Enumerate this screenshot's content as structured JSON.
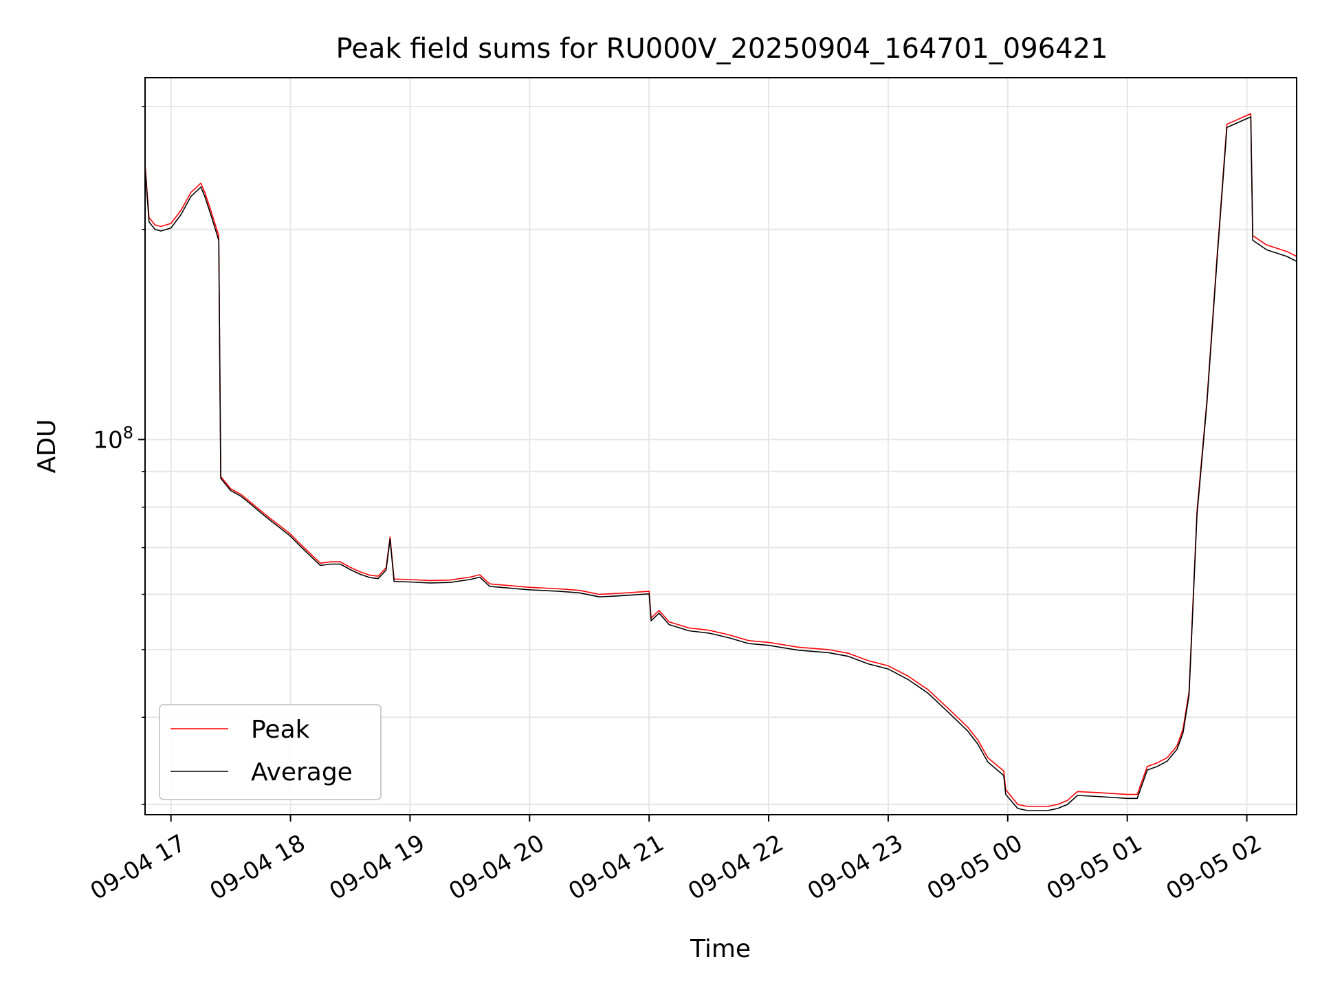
{
  "chart_data": {
    "type": "line",
    "title": "Peak field sums for RU000V_20250904_164701_096421",
    "xlabel": "Time",
    "ylabel": "ADU",
    "y_scale": "log",
    "x_range": [
      "2025-09-04 16:47",
      "2025-09-05 02:25"
    ],
    "ylim": [
      29000000,
      330000000
    ],
    "x_ticks": [
      {
        "t": "2025-09-04 17:00",
        "label": "09-04 17"
      },
      {
        "t": "2025-09-04 18:00",
        "label": "09-04 18"
      },
      {
        "t": "2025-09-04 19:00",
        "label": "09-04 19"
      },
      {
        "t": "2025-09-04 20:00",
        "label": "09-04 20"
      },
      {
        "t": "2025-09-04 21:00",
        "label": "09-04 21"
      },
      {
        "t": "2025-09-04 22:00",
        "label": "09-04 22"
      },
      {
        "t": "2025-09-04 23:00",
        "label": "09-04 23"
      },
      {
        "t": "2025-09-05 00:00",
        "label": "09-05 00"
      },
      {
        "t": "2025-09-05 01:00",
        "label": "09-05 01"
      },
      {
        "t": "2025-09-05 02:00",
        "label": "09-05 02"
      }
    ],
    "y_major_ticks": [
      {
        "value": 100000000,
        "label_base": "10",
        "label_exp": "8"
      }
    ],
    "y_minor_ticks": [
      30000000,
      40000000,
      50000000,
      60000000,
      70000000,
      80000000,
      90000000,
      200000000,
      300000000
    ],
    "grid": true,
    "legend_position": "lower-left",
    "legend": [
      {
        "name": "Peak",
        "color": "#ff0000"
      },
      {
        "name": "Average",
        "color": "#000000"
      }
    ],
    "series": [
      {
        "name": "Average",
        "color": "#000000",
        "points": [
          [
            "2025-09-04 16:47",
            245000000
          ],
          [
            "2025-09-04 16:49",
            205000000
          ],
          [
            "2025-09-04 16:52",
            200000000
          ],
          [
            "2025-09-04 16:55",
            199000000
          ],
          [
            "2025-09-04 17:00",
            201000000
          ],
          [
            "2025-09-04 17:05",
            210000000
          ],
          [
            "2025-09-04 17:10",
            223000000
          ],
          [
            "2025-09-04 17:15",
            230000000
          ],
          [
            "2025-09-04 17:17",
            223000000
          ],
          [
            "2025-09-04 17:20",
            210000000
          ],
          [
            "2025-09-04 17:24",
            193000000
          ],
          [
            "2025-09-04 17:25",
            88000000
          ],
          [
            "2025-09-04 17:30",
            84500000
          ],
          [
            "2025-09-04 17:35",
            83000000
          ],
          [
            "2025-09-04 17:40",
            80800000
          ],
          [
            "2025-09-04 17:45",
            78600000
          ],
          [
            "2025-09-04 17:50",
            76500000
          ],
          [
            "2025-09-04 17:55",
            74600000
          ],
          [
            "2025-09-04 18:00",
            72700000
          ],
          [
            "2025-09-04 18:05",
            70300000
          ],
          [
            "2025-09-04 18:10",
            68100000
          ],
          [
            "2025-09-04 18:15",
            66000000
          ],
          [
            "2025-09-04 18:20",
            66300000
          ],
          [
            "2025-09-04 18:25",
            66300000
          ],
          [
            "2025-09-04 18:30",
            65100000
          ],
          [
            "2025-09-04 18:35",
            64100000
          ],
          [
            "2025-09-04 18:40",
            63400000
          ],
          [
            "2025-09-04 18:44",
            63200000
          ],
          [
            "2025-09-04 18:48",
            65000000
          ],
          [
            "2025-09-04 18:50",
            72000000
          ],
          [
            "2025-09-04 18:52",
            62600000
          ],
          [
            "2025-09-04 19:00",
            62500000
          ],
          [
            "2025-09-04 19:10",
            62300000
          ],
          [
            "2025-09-04 19:20",
            62400000
          ],
          [
            "2025-09-04 19:30",
            63000000
          ],
          [
            "2025-09-04 19:35",
            63500000
          ],
          [
            "2025-09-04 19:40",
            61600000
          ],
          [
            "2025-09-04 20:00",
            60900000
          ],
          [
            "2025-09-04 20:15",
            60600000
          ],
          [
            "2025-09-04 20:25",
            60300000
          ],
          [
            "2025-09-04 20:35",
            59500000
          ],
          [
            "2025-09-04 20:45",
            59700000
          ],
          [
            "2025-09-04 21:00",
            60100000
          ],
          [
            "2025-09-04 21:01",
            55000000
          ],
          [
            "2025-09-04 21:05",
            56400000
          ],
          [
            "2025-09-04 21:10",
            54300000
          ],
          [
            "2025-09-04 21:20",
            53200000
          ],
          [
            "2025-09-04 21:30",
            52800000
          ],
          [
            "2025-09-04 21:40",
            52000000
          ],
          [
            "2025-09-04 21:50",
            51000000
          ],
          [
            "2025-09-04 22:00",
            50700000
          ],
          [
            "2025-09-04 22:15",
            49900000
          ],
          [
            "2025-09-04 22:30",
            49500000
          ],
          [
            "2025-09-04 22:40",
            48900000
          ],
          [
            "2025-09-04 22:50",
            47700000
          ],
          [
            "2025-09-04 23:00",
            46900000
          ],
          [
            "2025-09-04 23:10",
            45300000
          ],
          [
            "2025-09-04 23:20",
            43300000
          ],
          [
            "2025-09-04 23:30",
            40700000
          ],
          [
            "2025-09-04 23:40",
            38200000
          ],
          [
            "2025-09-04 23:45",
            36600000
          ],
          [
            "2025-09-04 23:50",
            34500000
          ],
          [
            "2025-09-04 23:58",
            33000000
          ],
          [
            "2025-09-04 23:59",
            31000000
          ],
          [
            "2025-09-05 00:05",
            29600000
          ],
          [
            "2025-09-05 00:10",
            29400000
          ],
          [
            "2025-09-05 00:20",
            29400000
          ],
          [
            "2025-09-05 00:25",
            29600000
          ],
          [
            "2025-09-05 00:30",
            30000000
          ],
          [
            "2025-09-05 00:35",
            30900000
          ],
          [
            "2025-09-05 00:45",
            30800000
          ],
          [
            "2025-09-05 01:00",
            30600000
          ],
          [
            "2025-09-05 01:05",
            30600000
          ],
          [
            "2025-09-05 01:10",
            33600000
          ],
          [
            "2025-09-05 01:15",
            34000000
          ],
          [
            "2025-09-05 01:20",
            34600000
          ],
          [
            "2025-09-05 01:25",
            36000000
          ],
          [
            "2025-09-05 01:28",
            38000000
          ],
          [
            "2025-09-05 01:31",
            43000000
          ],
          [
            "2025-09-05 01:35",
            78000000
          ],
          [
            "2025-09-05 01:40",
            113000000
          ],
          [
            "2025-09-05 01:45",
            180000000
          ],
          [
            "2025-09-05 01:50",
            280000000
          ],
          [
            "2025-09-05 02:02",
            290000000
          ],
          [
            "2025-09-05 02:03",
            193000000
          ],
          [
            "2025-09-05 02:10",
            187000000
          ],
          [
            "2025-09-05 02:15",
            185000000
          ],
          [
            "2025-09-05 02:20",
            183000000
          ],
          [
            "2025-09-05 02:25",
            180000000
          ]
        ]
      },
      {
        "name": "Peak",
        "color": "#ff0000",
        "points": [
          [
            "2025-09-04 16:47",
            248000000
          ],
          [
            "2025-09-04 16:49",
            208000000
          ],
          [
            "2025-09-04 16:52",
            203000000
          ],
          [
            "2025-09-04 16:55",
            202000000
          ],
          [
            "2025-09-04 17:00",
            204000000
          ],
          [
            "2025-09-04 17:05",
            213000000
          ],
          [
            "2025-09-04 17:10",
            226000000
          ],
          [
            "2025-09-04 17:15",
            233000000
          ],
          [
            "2025-09-04 17:17",
            226000000
          ],
          [
            "2025-09-04 17:20",
            213000000
          ],
          [
            "2025-09-04 17:24",
            196000000
          ],
          [
            "2025-09-04 17:25",
            88500000
          ],
          [
            "2025-09-04 17:30",
            85000000
          ],
          [
            "2025-09-04 17:35",
            83500000
          ],
          [
            "2025-09-04 17:40",
            81300000
          ],
          [
            "2025-09-04 17:45",
            79100000
          ],
          [
            "2025-09-04 17:50",
            77000000
          ],
          [
            "2025-09-04 17:55",
            75100000
          ],
          [
            "2025-09-04 18:00",
            73200000
          ],
          [
            "2025-09-04 18:05",
            70800000
          ],
          [
            "2025-09-04 18:10",
            68600000
          ],
          [
            "2025-09-04 18:15",
            66500000
          ],
          [
            "2025-09-04 18:20",
            66800000
          ],
          [
            "2025-09-04 18:25",
            66800000
          ],
          [
            "2025-09-04 18:30",
            65600000
          ],
          [
            "2025-09-04 18:35",
            64600000
          ],
          [
            "2025-09-04 18:40",
            63900000
          ],
          [
            "2025-09-04 18:44",
            63700000
          ],
          [
            "2025-09-04 18:48",
            65500000
          ],
          [
            "2025-09-04 18:50",
            72500000
          ],
          [
            "2025-09-04 18:52",
            63100000
          ],
          [
            "2025-09-04 19:00",
            63000000
          ],
          [
            "2025-09-04 19:10",
            62800000
          ],
          [
            "2025-09-04 19:20",
            62900000
          ],
          [
            "2025-09-04 19:30",
            63500000
          ],
          [
            "2025-09-04 19:35",
            64000000
          ],
          [
            "2025-09-04 19:40",
            62100000
          ],
          [
            "2025-09-04 20:00",
            61400000
          ],
          [
            "2025-09-04 20:15",
            61100000
          ],
          [
            "2025-09-04 20:25",
            60800000
          ],
          [
            "2025-09-04 20:35",
            60000000
          ],
          [
            "2025-09-04 20:45",
            60200000
          ],
          [
            "2025-09-04 21:00",
            60600000
          ],
          [
            "2025-09-04 21:01",
            55500000
          ],
          [
            "2025-09-04 21:05",
            56900000
          ],
          [
            "2025-09-04 21:10",
            54800000
          ],
          [
            "2025-09-04 21:20",
            53700000
          ],
          [
            "2025-09-04 21:30",
            53300000
          ],
          [
            "2025-09-04 21:40",
            52500000
          ],
          [
            "2025-09-04 21:50",
            51500000
          ],
          [
            "2025-09-04 22:00",
            51200000
          ],
          [
            "2025-09-04 22:15",
            50400000
          ],
          [
            "2025-09-04 22:30",
            50000000
          ],
          [
            "2025-09-04 22:40",
            49400000
          ],
          [
            "2025-09-04 22:50",
            48200000
          ],
          [
            "2025-09-04 23:00",
            47400000
          ],
          [
            "2025-09-04 23:10",
            45800000
          ],
          [
            "2025-09-04 23:20",
            43800000
          ],
          [
            "2025-09-04 23:30",
            41200000
          ],
          [
            "2025-09-04 23:40",
            38700000
          ],
          [
            "2025-09-04 23:45",
            37100000
          ],
          [
            "2025-09-04 23:50",
            35000000
          ],
          [
            "2025-09-04 23:58",
            33500000
          ],
          [
            "2025-09-04 23:59",
            31500000
          ],
          [
            "2025-09-05 00:05",
            30000000
          ],
          [
            "2025-09-05 00:10",
            29800000
          ],
          [
            "2025-09-05 00:20",
            29800000
          ],
          [
            "2025-09-05 00:25",
            30000000
          ],
          [
            "2025-09-05 00:30",
            30400000
          ],
          [
            "2025-09-05 00:35",
            31300000
          ],
          [
            "2025-09-05 00:45",
            31200000
          ],
          [
            "2025-09-05 01:00",
            31000000
          ],
          [
            "2025-09-05 01:05",
            31000000
          ],
          [
            "2025-09-05 01:10",
            34000000
          ],
          [
            "2025-09-05 01:15",
            34400000
          ],
          [
            "2025-09-05 01:20",
            35000000
          ],
          [
            "2025-09-05 01:25",
            36400000
          ],
          [
            "2025-09-05 01:28",
            38500000
          ],
          [
            "2025-09-05 01:31",
            43500000
          ],
          [
            "2025-09-05 01:35",
            79000000
          ],
          [
            "2025-09-05 01:40",
            114000000
          ],
          [
            "2025-09-05 01:45",
            182000000
          ],
          [
            "2025-09-05 01:50",
            283000000
          ],
          [
            "2025-09-05 02:02",
            293000000
          ],
          [
            "2025-09-05 02:03",
            196000000
          ],
          [
            "2025-09-05 02:10",
            190000000
          ],
          [
            "2025-09-05 02:15",
            188000000
          ],
          [
            "2025-09-05 02:20",
            186000000
          ],
          [
            "2025-09-05 02:25",
            183000000
          ]
        ]
      }
    ]
  }
}
